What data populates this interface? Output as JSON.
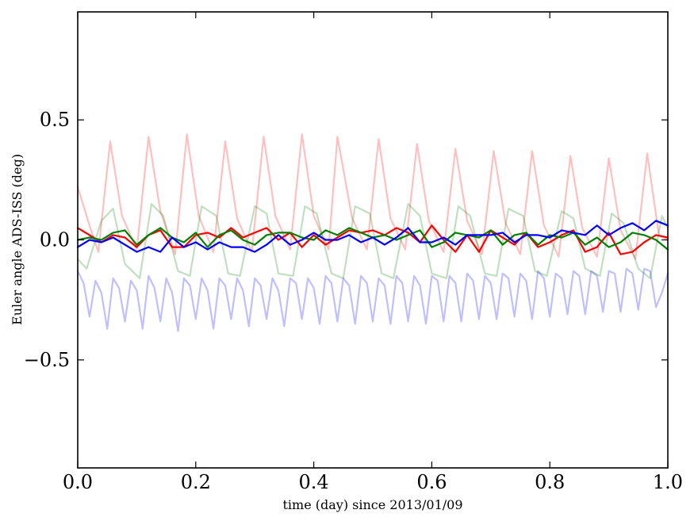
{
  "chart_data": {
    "type": "line",
    "xlabel": "time (day) since 2013/01/09",
    "ylabel": "Euler angle ADS-ISS (deg)",
    "xlim": [
      0.0,
      1.0
    ],
    "ylim": [
      -0.95,
      0.95
    ],
    "x_ticks": [
      0.0,
      0.2,
      0.4,
      0.6,
      0.8,
      1.0
    ],
    "x_tick_labels": [
      "0.0",
      "0.2",
      "0.4",
      "0.6",
      "0.8",
      "1.0"
    ],
    "y_ticks": [
      -0.5,
      0.0,
      0.5
    ],
    "y_tick_labels": [
      "−0.5",
      "0.0",
      "0.5"
    ],
    "grid": false,
    "legend": "none",
    "series": [
      {
        "color": "#ff0000",
        "alpha": 0.25,
        "x": [
          0.0,
          0.02,
          0.035,
          0.055,
          0.075,
          0.1,
          0.12,
          0.14,
          0.165,
          0.185,
          0.205,
          0.23,
          0.25,
          0.27,
          0.295,
          0.315,
          0.335,
          0.36,
          0.38,
          0.4,
          0.425,
          0.44,
          0.465,
          0.49,
          0.51,
          0.53,
          0.555,
          0.575,
          0.595,
          0.62,
          0.64,
          0.66,
          0.685,
          0.705,
          0.725,
          0.75,
          0.77,
          0.79,
          0.815,
          0.835,
          0.855,
          0.88,
          0.9,
          0.92,
          0.945,
          0.965,
          0.985,
          1.0
        ],
        "values": [
          0.22,
          0.06,
          -0.05,
          0.41,
          0.1,
          -0.04,
          0.43,
          0.12,
          -0.06,
          0.44,
          0.1,
          -0.05,
          0.41,
          0.09,
          -0.05,
          0.43,
          0.1,
          -0.04,
          0.44,
          0.1,
          -0.04,
          0.43,
          0.09,
          -0.04,
          0.42,
          0.09,
          -0.04,
          0.4,
          0.08,
          -0.05,
          0.38,
          0.08,
          -0.06,
          0.37,
          0.07,
          -0.06,
          0.37,
          0.06,
          -0.07,
          0.35,
          0.05,
          -0.07,
          0.34,
          0.04,
          -0.08,
          0.36,
          0.02,
          0.0
        ]
      },
      {
        "color": "#008000",
        "alpha": 0.25,
        "x": [
          0.0,
          0.015,
          0.04,
          0.06,
          0.08,
          0.105,
          0.125,
          0.145,
          0.17,
          0.19,
          0.21,
          0.235,
          0.255,
          0.275,
          0.3,
          0.32,
          0.34,
          0.365,
          0.385,
          0.405,
          0.43,
          0.45,
          0.47,
          0.495,
          0.515,
          0.535,
          0.56,
          0.58,
          0.6,
          0.625,
          0.645,
          0.665,
          0.69,
          0.71,
          0.73,
          0.755,
          0.775,
          0.795,
          0.82,
          0.84,
          0.86,
          0.885,
          0.905,
          0.925,
          0.95,
          0.97,
          0.99,
          1.0
        ],
        "values": [
          -0.08,
          -0.12,
          0.08,
          0.13,
          -0.1,
          -0.16,
          0.15,
          0.1,
          -0.13,
          -0.15,
          0.14,
          0.1,
          -0.14,
          -0.15,
          0.14,
          0.11,
          -0.14,
          -0.15,
          0.14,
          0.11,
          -0.14,
          -0.16,
          0.14,
          0.11,
          -0.14,
          -0.16,
          0.15,
          0.1,
          -0.14,
          -0.16,
          0.14,
          0.1,
          -0.14,
          -0.15,
          0.13,
          0.1,
          -0.13,
          -0.15,
          0.12,
          0.09,
          -0.12,
          -0.15,
          0.11,
          0.07,
          -0.12,
          -0.16,
          0.1,
          0.05
        ]
      },
      {
        "color": "#0000ff",
        "alpha": 0.25,
        "x": [
          0.0,
          0.01,
          0.02,
          0.03,
          0.04,
          0.05,
          0.06,
          0.07,
          0.08,
          0.09,
          0.1,
          0.11,
          0.12,
          0.13,
          0.14,
          0.15,
          0.16,
          0.17,
          0.18,
          0.19,
          0.2,
          0.21,
          0.22,
          0.23,
          0.24,
          0.25,
          0.26,
          0.27,
          0.28,
          0.29,
          0.3,
          0.31,
          0.32,
          0.33,
          0.34,
          0.35,
          0.36,
          0.37,
          0.38,
          0.39,
          0.4,
          0.41,
          0.42,
          0.43,
          0.44,
          0.45,
          0.46,
          0.47,
          0.48,
          0.49,
          0.5,
          0.51,
          0.52,
          0.53,
          0.54,
          0.55,
          0.56,
          0.57,
          0.58,
          0.59,
          0.6,
          0.61,
          0.62,
          0.63,
          0.64,
          0.65,
          0.66,
          0.67,
          0.68,
          0.69,
          0.7,
          0.71,
          0.72,
          0.73,
          0.74,
          0.75,
          0.76,
          0.77,
          0.78,
          0.79,
          0.8,
          0.81,
          0.82,
          0.83,
          0.84,
          0.85,
          0.86,
          0.87,
          0.88,
          0.89,
          0.9,
          0.91,
          0.92,
          0.93,
          0.94,
          0.95,
          0.96,
          0.97,
          0.98,
          0.99,
          1.0
        ],
        "values": [
          -0.13,
          -0.18,
          -0.32,
          -0.17,
          -0.22,
          -0.37,
          -0.16,
          -0.2,
          -0.34,
          -0.17,
          -0.21,
          -0.37,
          -0.15,
          -0.2,
          -0.34,
          -0.16,
          -0.22,
          -0.38,
          -0.16,
          -0.19,
          -0.33,
          -0.16,
          -0.21,
          -0.37,
          -0.16,
          -0.19,
          -0.33,
          -0.16,
          -0.21,
          -0.36,
          -0.16,
          -0.19,
          -0.33,
          -0.16,
          -0.21,
          -0.36,
          -0.16,
          -0.18,
          -0.33,
          -0.16,
          -0.2,
          -0.35,
          -0.15,
          -0.18,
          -0.34,
          -0.16,
          -0.19,
          -0.35,
          -0.15,
          -0.18,
          -0.34,
          -0.16,
          -0.19,
          -0.35,
          -0.15,
          -0.18,
          -0.34,
          -0.15,
          -0.19,
          -0.35,
          -0.15,
          -0.17,
          -0.34,
          -0.15,
          -0.18,
          -0.34,
          -0.14,
          -0.17,
          -0.33,
          -0.15,
          -0.18,
          -0.33,
          -0.14,
          -0.16,
          -0.32,
          -0.14,
          -0.17,
          -0.33,
          -0.13,
          -0.16,
          -0.32,
          -0.14,
          -0.16,
          -0.31,
          -0.13,
          -0.15,
          -0.31,
          -0.13,
          -0.15,
          -0.3,
          -0.13,
          -0.14,
          -0.3,
          -0.12,
          -0.14,
          -0.29,
          -0.12,
          -0.13,
          -0.28,
          -0.22,
          -0.14
        ]
      },
      {
        "color": "#ff0000",
        "alpha": 1.0,
        "x": [
          0.0,
          0.02,
          0.04,
          0.06,
          0.08,
          0.1,
          0.12,
          0.14,
          0.16,
          0.18,
          0.2,
          0.22,
          0.24,
          0.26,
          0.28,
          0.3,
          0.32,
          0.34,
          0.36,
          0.38,
          0.4,
          0.42,
          0.44,
          0.46,
          0.48,
          0.5,
          0.52,
          0.54,
          0.56,
          0.58,
          0.6,
          0.62,
          0.64,
          0.66,
          0.68,
          0.7,
          0.72,
          0.74,
          0.76,
          0.78,
          0.8,
          0.82,
          0.84,
          0.86,
          0.88,
          0.9,
          0.92,
          0.94,
          0.96,
          0.98,
          1.0
        ],
        "values": [
          0.05,
          0.02,
          -0.01,
          0.02,
          0.01,
          -0.03,
          0.02,
          0.04,
          -0.03,
          -0.03,
          0.02,
          0.03,
          0.01,
          0.05,
          0.01,
          0.03,
          0.05,
          0.0,
          0.03,
          -0.03,
          0.02,
          -0.02,
          0.01,
          0.04,
          0.03,
          0.04,
          0.02,
          0.05,
          0.03,
          -0.01,
          0.06,
          0.0,
          -0.05,
          0.02,
          -0.05,
          0.04,
          0.01,
          -0.02,
          0.03,
          -0.03,
          -0.01,
          0.02,
          0.04,
          -0.05,
          -0.03,
          0.03,
          -0.06,
          -0.05,
          -0.01,
          0.02,
          0.01
        ]
      },
      {
        "color": "#008000",
        "alpha": 1.0,
        "x": [
          0.0,
          0.02,
          0.04,
          0.06,
          0.08,
          0.1,
          0.12,
          0.14,
          0.16,
          0.18,
          0.2,
          0.22,
          0.24,
          0.26,
          0.28,
          0.3,
          0.32,
          0.34,
          0.36,
          0.38,
          0.4,
          0.42,
          0.44,
          0.46,
          0.48,
          0.5,
          0.52,
          0.54,
          0.56,
          0.58,
          0.6,
          0.62,
          0.64,
          0.66,
          0.68,
          0.7,
          0.72,
          0.74,
          0.76,
          0.78,
          0.8,
          0.82,
          0.84,
          0.86,
          0.88,
          0.9,
          0.92,
          0.94,
          0.96,
          0.98,
          1.0
        ],
        "values": [
          0.0,
          0.01,
          0.0,
          0.03,
          0.04,
          -0.02,
          0.02,
          0.05,
          0.01,
          -0.01,
          0.03,
          -0.03,
          0.02,
          0.04,
          0.0,
          -0.02,
          0.02,
          0.03,
          0.03,
          0.01,
          0.0,
          0.04,
          0.02,
          0.05,
          0.03,
          0.01,
          0.02,
          0.0,
          0.02,
          0.04,
          -0.03,
          -0.01,
          0.03,
          0.02,
          0.01,
          0.04,
          -0.02,
          0.02,
          0.03,
          -0.02,
          0.02,
          0.01,
          0.03,
          -0.02,
          0.01,
          -0.03,
          -0.01,
          0.03,
          0.02,
          0.0,
          -0.04
        ]
      },
      {
        "color": "#0000ff",
        "alpha": 1.0,
        "x": [
          0.0,
          0.02,
          0.04,
          0.06,
          0.08,
          0.1,
          0.12,
          0.14,
          0.16,
          0.18,
          0.2,
          0.22,
          0.24,
          0.26,
          0.28,
          0.3,
          0.32,
          0.34,
          0.36,
          0.38,
          0.4,
          0.42,
          0.44,
          0.46,
          0.48,
          0.5,
          0.52,
          0.54,
          0.56,
          0.58,
          0.6,
          0.62,
          0.64,
          0.66,
          0.68,
          0.7,
          0.72,
          0.74,
          0.76,
          0.78,
          0.8,
          0.82,
          0.84,
          0.86,
          0.88,
          0.9,
          0.92,
          0.94,
          0.96,
          0.98,
          1.0
        ],
        "values": [
          -0.03,
          0.0,
          -0.01,
          0.01,
          -0.02,
          -0.05,
          -0.03,
          -0.05,
          0.01,
          -0.03,
          -0.01,
          -0.04,
          -0.01,
          -0.03,
          -0.03,
          -0.05,
          -0.02,
          0.02,
          -0.02,
          0.0,
          0.03,
          0.0,
          0.0,
          0.02,
          -0.01,
          0.01,
          -0.02,
          0.01,
          0.05,
          -0.01,
          -0.01,
          0.01,
          -0.02,
          0.02,
          0.02,
          0.02,
          0.03,
          -0.01,
          0.02,
          0.02,
          0.01,
          0.04,
          0.03,
          0.02,
          0.06,
          0.02,
          0.05,
          0.07,
          0.04,
          0.08,
          0.06
        ]
      }
    ]
  }
}
